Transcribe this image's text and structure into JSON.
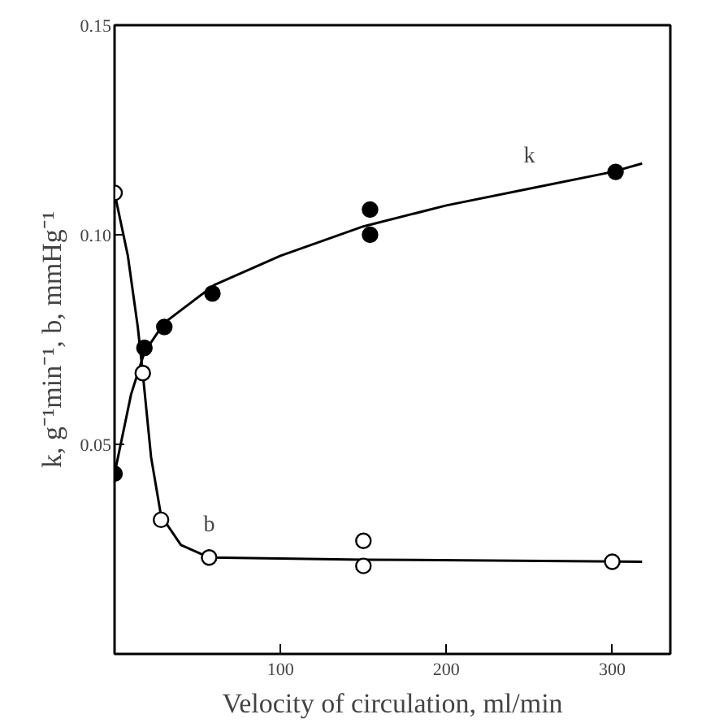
{
  "chart_data": {
    "type": "line",
    "xlabel": "Velocity of circulation, ml/min",
    "ylabel": "k, g⁻¹min⁻¹, b, mmHg⁻¹",
    "xlim": [
      0,
      335
    ],
    "ylim": [
      0,
      0.15
    ],
    "xticks": [
      100,
      200,
      300
    ],
    "yticks": [
      0.05,
      {
        "value": 0.1,
        "label": "0.10"
      },
      0.15
    ],
    "grid": false,
    "series": [
      {
        "name": "k",
        "color": "#000000",
        "marker": "none",
        "x": [
          0,
          10,
          18,
          30,
          60,
          100,
          150,
          200,
          250,
          300,
          318
        ],
        "values": [
          0.043,
          0.062,
          0.072,
          0.079,
          0.088,
          0.095,
          0.102,
          0.107,
          0.111,
          0.115,
          0.117
        ]
      },
      {
        "name": "b",
        "color": "#000000",
        "marker": "none",
        "x": [
          0,
          8,
          14,
          17,
          22,
          28,
          40,
          57,
          150,
          318
        ],
        "values": [
          0.11,
          0.095,
          0.078,
          0.067,
          0.047,
          0.033,
          0.026,
          0.023,
          0.0225,
          0.022
        ]
      },
      {
        "type": "scatter",
        "color": "#000000",
        "marker": "circle",
        "x": [
          0,
          18,
          30,
          59,
          154,
          154,
          302
        ],
        "values": [
          0.043,
          0.073,
          0.078,
          0.086,
          0.106,
          0.1,
          0.115
        ]
      },
      {
        "type": "scatter",
        "color": "#ffffff",
        "marker": "circle",
        "x": [
          0,
          17,
          28,
          57,
          150,
          150,
          300
        ],
        "values": [
          0.11,
          0.067,
          0.032,
          0.023,
          0.027,
          0.021,
          0.022
        ]
      }
    ]
  }
}
